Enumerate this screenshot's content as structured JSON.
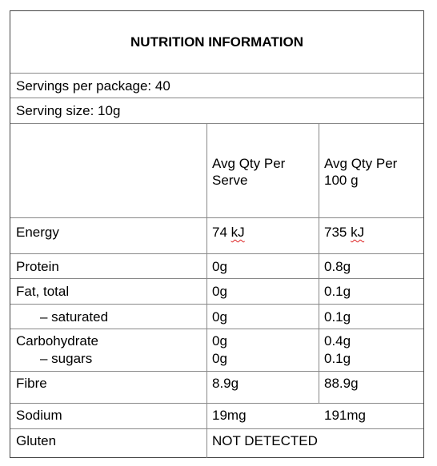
{
  "title": "NUTRITION INFORMATION",
  "servings_per_package": "Servings per package: 40",
  "serving_size": "Serving size: 10g",
  "columns": {
    "per_serve_line1": "Avg Qty Per",
    "per_serve_line2": "Serve",
    "per_100g_line1": "Avg Qty Per",
    "per_100g_line2": "100 g"
  },
  "rows": {
    "energy": {
      "label": "Energy",
      "serve_num": "74",
      "serve_unit": "kJ",
      "per100_num": "735",
      "per100_unit": "kJ"
    },
    "protein": {
      "label": "Protein",
      "serve": "0g",
      "per100": "0.8g"
    },
    "fat_total": {
      "label": "Fat, total",
      "serve": "0g",
      "per100": "0.1g"
    },
    "saturated": {
      "label": "– saturated",
      "serve": "0g",
      "per100": "0.1g"
    },
    "carbohydrate": {
      "label": "Carbohydrate",
      "serve": "0g",
      "per100": "0.4g"
    },
    "sugars": {
      "label": "– sugars",
      "serve": "0g",
      "per100": "0.1g"
    },
    "fibre": {
      "label": "Fibre",
      "serve": "8.9g",
      "per100": "88.9g"
    },
    "sodium": {
      "label": "Sodium",
      "serve": "19mg",
      "per100": "191mg"
    },
    "gluten": {
      "label": "Gluten",
      "value": "NOT DETECTED"
    }
  }
}
